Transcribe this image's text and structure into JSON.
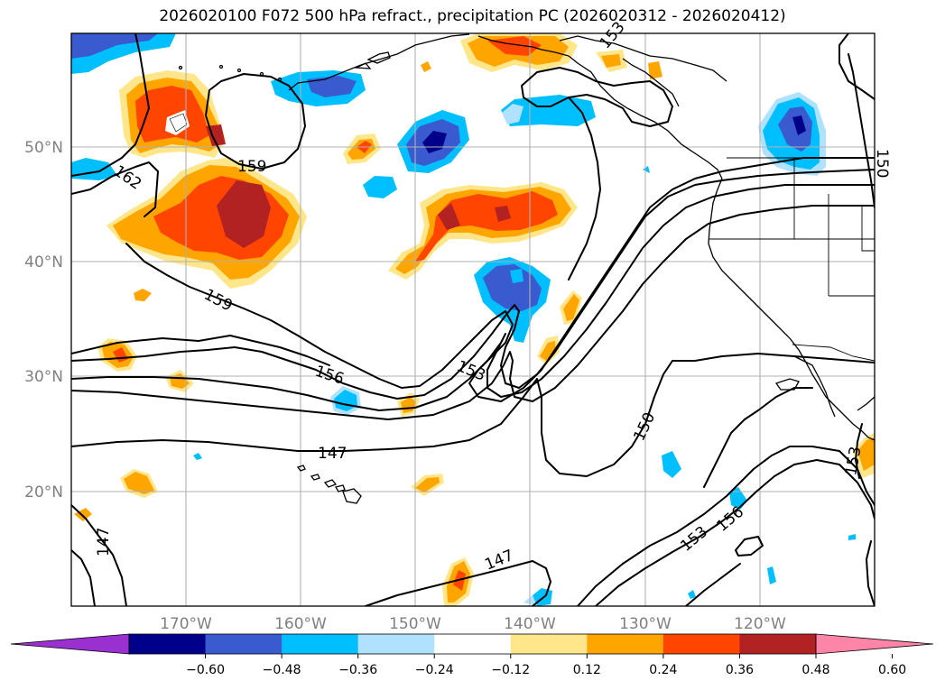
{
  "title": "2026020100 F072 500 hPa refract., precipitation PC (2026020312 - 2026020412)",
  "map": {
    "projection": "latlon",
    "lon_range": [
      -180,
      -110
    ],
    "lat_range": [
      10,
      60
    ],
    "lon_ticks": [
      "170°W",
      "160°W",
      "150°W",
      "140°W",
      "130°W",
      "120°W"
    ],
    "lat_ticks": [
      "20°N",
      "30°N",
      "40°N",
      "50°N"
    ],
    "grid": true,
    "contour_levels_labeled": [
      "162",
      "159",
      "159",
      "156",
      "153",
      "153",
      "150",
      "147",
      "147",
      "147",
      "156",
      "153",
      "153",
      "150"
    ]
  },
  "colorbar": {
    "ticks": [
      "−0.60",
      "−0.48",
      "−0.36",
      "−0.24",
      "−0.12",
      "0.12",
      "0.24",
      "0.36",
      "0.48",
      "0.60"
    ],
    "colors": [
      "#9b30d0",
      "#00008b",
      "#3a5bd0",
      "#00bfff",
      "#b0e2ff",
      "#ffffff",
      "#ffe68a",
      "#ffa500",
      "#ff4500",
      "#b22222",
      "#ff85a8"
    ],
    "extend": "both"
  }
}
